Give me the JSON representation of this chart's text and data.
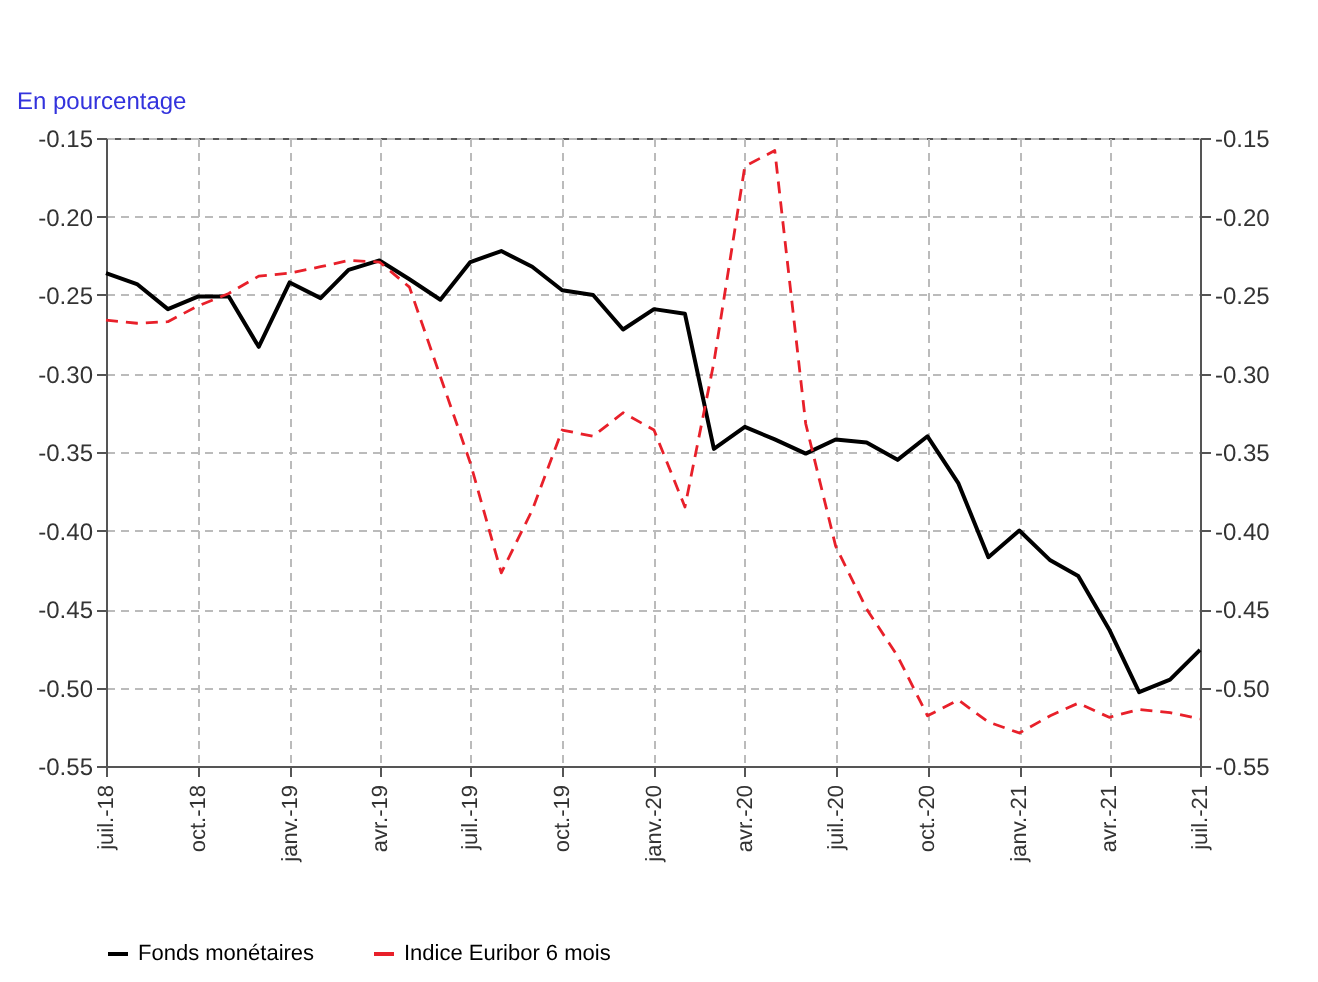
{
  "chart_data": {
    "type": "line",
    "ylabel": "En pourcentage",
    "x": [
      "2018-07",
      "2018-08",
      "2018-09",
      "2018-10",
      "2018-11",
      "2018-12",
      "2019-01",
      "2019-02",
      "2019-03",
      "2019-04",
      "2019-05",
      "2019-06",
      "2019-07",
      "2019-08",
      "2019-09",
      "2019-10",
      "2019-11",
      "2019-12",
      "2020-01",
      "2020-02",
      "2020-03",
      "2020-04",
      "2020-05",
      "2020-06",
      "2020-07",
      "2020-08",
      "2020-09",
      "2020-10",
      "2020-11",
      "2020-12",
      "2021-01",
      "2021-02",
      "2021-03",
      "2021-04",
      "2021-05",
      "2021-06",
      "2021-07"
    ],
    "series": [
      {
        "name": "Fonds monétaires",
        "color": "#000000",
        "line_style": "solid",
        "values": [
          -0.236,
          -0.243,
          -0.259,
          -0.251,
          -0.251,
          -0.283,
          -0.242,
          -0.252,
          -0.234,
          -0.228,
          -0.24,
          -0.253,
          -0.229,
          -0.222,
          -0.232,
          -0.247,
          -0.25,
          -0.272,
          -0.259,
          -0.262,
          -0.348,
          -0.334,
          -0.342,
          -0.351,
          -0.342,
          -0.344,
          -0.355,
          -0.34,
          -0.37,
          -0.417,
          -0.4,
          -0.419,
          -0.429,
          -0.463,
          -0.503,
          -0.495,
          -0.476
        ]
      },
      {
        "name": "Indice Euribor 6 mois",
        "color": "#e8202a",
        "line_style": "dashed",
        "values": [
          -0.266,
          -0.268,
          -0.267,
          -0.257,
          -0.249,
          -0.238,
          -0.236,
          -0.232,
          -0.228,
          -0.229,
          -0.245,
          -0.302,
          -0.357,
          -0.427,
          -0.387,
          -0.336,
          -0.34,
          -0.325,
          -0.336,
          -0.385,
          -0.293,
          -0.168,
          -0.158,
          -0.332,
          -0.41,
          -0.45,
          -0.48,
          -0.518,
          -0.508,
          -0.522,
          -0.529,
          -0.518,
          -0.51,
          -0.519,
          -0.514,
          -0.516,
          -0.52
        ]
      }
    ],
    "xlim": [
      "2018-07",
      "2021-07"
    ],
    "xticks": [
      {
        "value": "2018-07",
        "label": "juil.-18"
      },
      {
        "value": "2018-10",
        "label": "oct.-18"
      },
      {
        "value": "2019-01",
        "label": "janv.-19"
      },
      {
        "value": "2019-04",
        "label": "avr.-19"
      },
      {
        "value": "2019-07",
        "label": "juil.-19"
      },
      {
        "value": "2019-10",
        "label": "oct.-19"
      },
      {
        "value": "2020-01",
        "label": "janv.-20"
      },
      {
        "value": "2020-04",
        "label": "avr.-20"
      },
      {
        "value": "2020-07",
        "label": "juil.-20"
      },
      {
        "value": "2020-10",
        "label": "oct.-20"
      },
      {
        "value": "2021-01",
        "label": "janv.-21"
      },
      {
        "value": "2021-04",
        "label": "avr.-21"
      },
      {
        "value": "2021-07",
        "label": "juil.-21"
      }
    ],
    "ylim": [
      -0.55,
      -0.15
    ],
    "yticks": [
      {
        "value": -0.55,
        "label": "-0.55"
      },
      {
        "value": -0.5,
        "label": "-0.50"
      },
      {
        "value": -0.45,
        "label": "-0.45"
      },
      {
        "value": -0.4,
        "label": "-0.40"
      },
      {
        "value": -0.35,
        "label": "-0.35"
      },
      {
        "value": -0.3,
        "label": "-0.30"
      },
      {
        "value": -0.25,
        "label": "-0.25"
      },
      {
        "value": -0.2,
        "label": "-0.20"
      },
      {
        "value": -0.15,
        "label": "-0.15"
      }
    ],
    "y2lim": [
      -0.55,
      -0.15
    ],
    "y2ticks": [
      {
        "value": -0.55,
        "label": "-0.55"
      },
      {
        "value": -0.5,
        "label": "-0.50"
      },
      {
        "value": -0.45,
        "label": "-0.45"
      },
      {
        "value": -0.4,
        "label": "-0.40"
      },
      {
        "value": -0.35,
        "label": "-0.35"
      },
      {
        "value": -0.3,
        "label": "-0.30"
      },
      {
        "value": -0.25,
        "label": "-0.25"
      },
      {
        "value": -0.2,
        "label": "-0.20"
      },
      {
        "value": -0.15,
        "label": "-0.15"
      }
    ],
    "grid": true,
    "legend": "bottom"
  }
}
